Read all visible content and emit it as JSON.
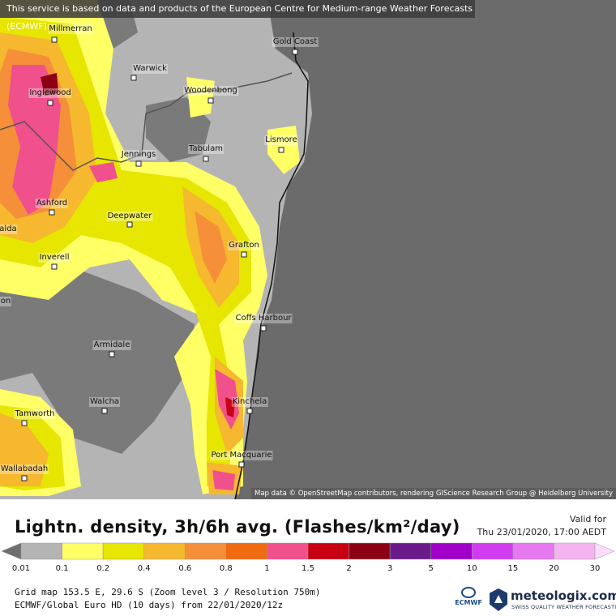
{
  "map": {
    "banner": "This service is based on data and products of the European Centre for Medium-range Weather Forecasts (ECMWF)",
    "attribution": "Map data © OpenStreetMap contributors, rendering GIScience Research Group @ Heidelberg University",
    "places": [
      {
        "name": "Millmerran"
      },
      {
        "name": "Gold Coast"
      },
      {
        "name": "Warwick"
      },
      {
        "name": "Woodenbong"
      },
      {
        "name": "Inglewood"
      },
      {
        "name": "Tabulam"
      },
      {
        "name": "Lismore"
      },
      {
        "name": "Jennings"
      },
      {
        "name": "Ashford"
      },
      {
        "name": "Deepwater"
      },
      {
        "name": "Grafton"
      },
      {
        "name": "Inverell"
      },
      {
        "name": "Coffs Harbour"
      },
      {
        "name": "Armidale"
      },
      {
        "name": "Kinchela"
      },
      {
        "name": "Walcha"
      },
      {
        "name": "Tamworth"
      },
      {
        "name": "Port Macquarie"
      },
      {
        "name": "Wallabadah"
      },
      {
        "name": "alda"
      },
      {
        "name": "on"
      }
    ]
  },
  "legend": {
    "title": "Lightn. density, 3h/6h avg. (Flashes/km²/day)",
    "valid_label": "Valid for",
    "valid_date": "Thu 23/01/2020, 17:00 AEDT",
    "scale": [
      {
        "label": "0.01",
        "color": "#6e6e6e"
      },
      {
        "label": "0.1",
        "color": "#b4b4b4"
      },
      {
        "label": "0.2",
        "color": "#ffff66"
      },
      {
        "label": "0.4",
        "color": "#e6e600"
      },
      {
        "label": "0.6",
        "color": "#f5b82e"
      },
      {
        "label": "0.8",
        "color": "#f58f3a"
      },
      {
        "label": "1",
        "color": "#f06a10"
      },
      {
        "label": "1.5",
        "color": "#f0508c"
      },
      {
        "label": "2",
        "color": "#c80012"
      },
      {
        "label": "3",
        "color": "#8c0014"
      },
      {
        "label": "5",
        "color": "#6a1a8a"
      },
      {
        "label": "10",
        "color": "#a000c8"
      },
      {
        "label": "15",
        "color": "#d23cf0"
      },
      {
        "label": "20",
        "color": "#e678f0"
      },
      {
        "label": "30",
        "color": "#f5b4f0"
      },
      {
        "label": "",
        "color": "#fcdcfa"
      }
    ],
    "grid_info": "Grid map 153.5 E, 29.6 S (Zoom level 3 / Resolution 750m)",
    "model_info": "ECMWF/Global Euro HD (10 days) from 22/01/2020/12z",
    "ecmwf_logo": "ECMWF",
    "brand": "meteologix.com",
    "brand_tagline": "SWISS QUALITY WEATHER FORECASTING"
  }
}
